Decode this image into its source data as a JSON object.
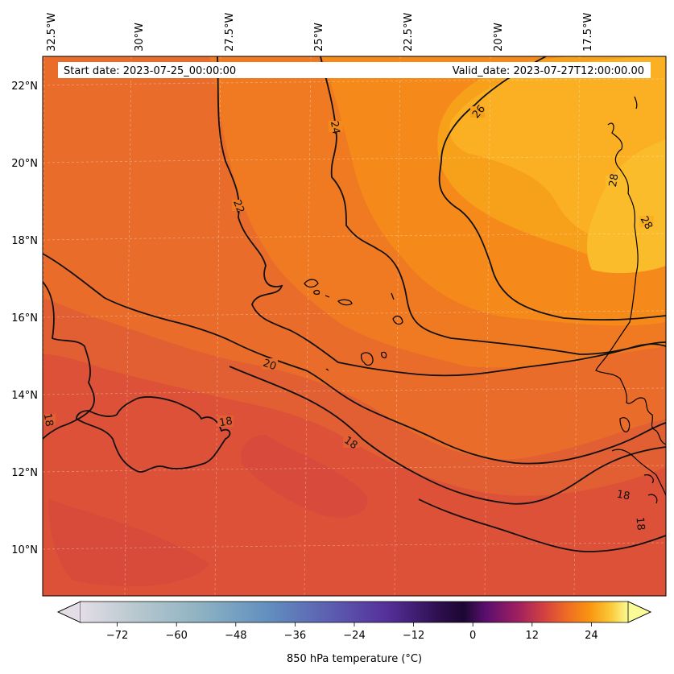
{
  "map": {
    "start_label": "Start date: 2023-07-25_00:00:00",
    "valid_label": "Valid_date: 2023-07-27T12:00:00.00",
    "lon_labels": [
      "32.5°W",
      "30°W",
      "27.5°W",
      "25°W",
      "22.5°W",
      "20°W",
      "17.5°W"
    ],
    "lat_labels": [
      "22°N",
      "20°N",
      "18°N",
      "16°N",
      "14°N",
      "12°N",
      "10°N"
    ],
    "contour_labels": [
      "26",
      "24",
      "22",
      "28",
      "28",
      "20",
      "18",
      "18",
      "18",
      "18",
      "18"
    ],
    "fill_colors": {
      "warm_core": "#fbbc2c",
      "orange": "#f59b1a",
      "mid_orange": "#ee7b24",
      "red_orange": "#e05e35",
      "deep_red": "#d64c3e"
    }
  },
  "colorbar": {
    "label": "850 hPa temperature (°C)",
    "tick_labels": [
      "−72",
      "−60",
      "−48",
      "−36",
      "−24",
      "−12",
      "0",
      "12",
      "24"
    ],
    "ticks": [
      -72,
      -60,
      -48,
      -36,
      -24,
      -12,
      0,
      12,
      24
    ],
    "range": [
      -84,
      36
    ],
    "extend": "both",
    "colormap": "custom: pale grey-lilac → light teal → blue → purple → black-purple (0) → magenta-red → orange → pale yellow"
  }
}
